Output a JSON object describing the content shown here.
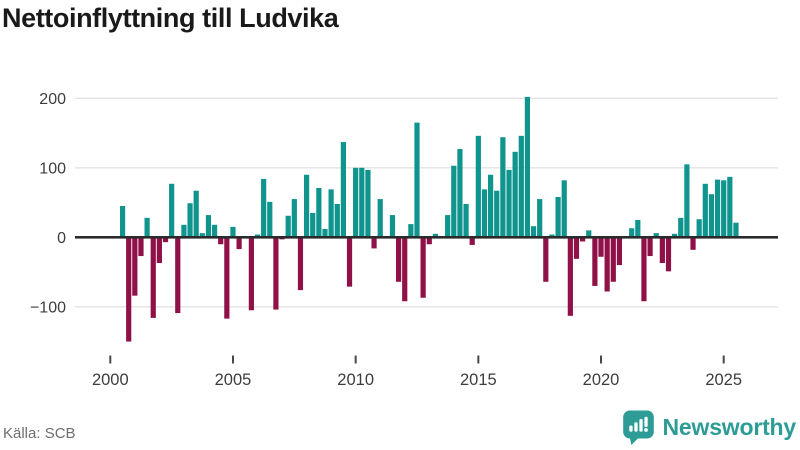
{
  "title": "Nettoinflyttning till Ludvika",
  "source": "Källa: SCB",
  "brand": {
    "name": "Newsworthy",
    "icon": "bar-chart-speech-bubble-badge",
    "color": "#2d9c96"
  },
  "colors": {
    "positive_bar": "#0f948e",
    "negative_bar": "#8f1147",
    "grid": "#e3e3e3",
    "zero_axis": "#2b2b2b",
    "axis_text": "#3d3d3d"
  },
  "chart_data": {
    "type": "bar",
    "title": "Nettoinflyttning till Ludvika",
    "xlabel": "",
    "ylabel": "",
    "frequency": "quarterly",
    "start_year": 2000,
    "start_quarter": 1,
    "ylim": [
      -165,
      215
    ],
    "grid": true,
    "y_ticks": [
      200,
      100,
      0,
      -100
    ],
    "y_tick_labels": [
      "200",
      "100",
      "0",
      "−100"
    ],
    "x_tick_years": [
      2000,
      2005,
      2010,
      2015,
      2020,
      2025
    ],
    "x_tick_labels": [
      "2000",
      "2005",
      "2010",
      "2015",
      "2020",
      "2025"
    ],
    "values": [
      0,
      0,
      45,
      -150,
      -84,
      -27,
      28,
      -116,
      -37,
      -7,
      77,
      -109,
      18,
      49,
      67,
      6,
      32,
      18,
      -10,
      -117,
      15,
      -17,
      0,
      -105,
      4,
      84,
      51,
      -104,
      -3,
      31,
      55,
      -76,
      90,
      35,
      71,
      12,
      69,
      48,
      137,
      -71,
      100,
      100,
      97,
      -16,
      55,
      0,
      32,
      -64,
      -92,
      19,
      165,
      -87,
      -10,
      5,
      0,
      32,
      103,
      127,
      48,
      -11,
      146,
      69,
      90,
      67,
      144,
      97,
      123,
      146,
      202,
      16,
      55,
      -64,
      4,
      58,
      82,
      -113,
      -31,
      -6,
      10,
      -70,
      -28,
      -78,
      -64,
      -40,
      0,
      13,
      25,
      -92,
      -27,
      6,
      -37,
      -49,
      5,
      28,
      105,
      -18,
      26,
      77,
      62,
      83,
      82,
      87,
      21
    ]
  }
}
